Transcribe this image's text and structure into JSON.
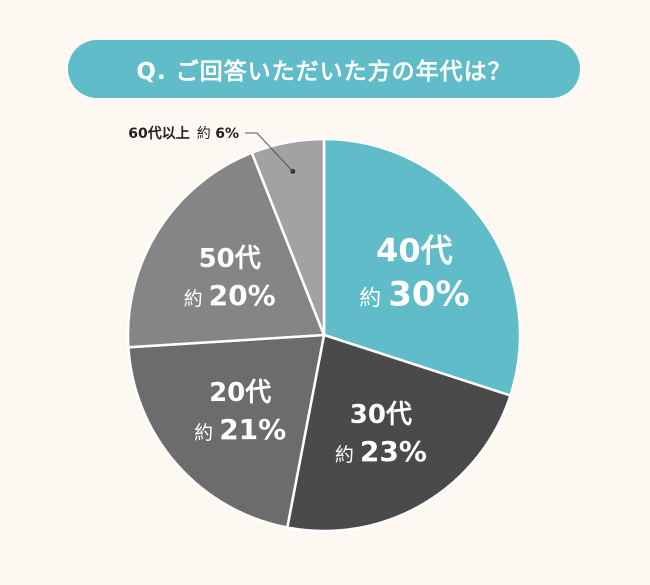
{
  "title": "Q. ご回答いただいた方の年代は？",
  "colors": {
    "background": "#fdf8f1",
    "title_pill": "#5fbcc8",
    "slice_borders": "#ffffff"
  },
  "chart_data": {
    "type": "pie",
    "title": "Q. ご回答いただいた方の年代は？",
    "slices": [
      {
        "category": "40代",
        "prefix": "約",
        "value": 30,
        "unit": "%",
        "color": "#5fbcc8",
        "label_color": "#ffffff"
      },
      {
        "category": "30代",
        "prefix": "約",
        "value": 23,
        "unit": "%",
        "color": "#4a4a4a",
        "label_color": "#ffffff"
      },
      {
        "category": "20代",
        "prefix": "約",
        "value": 21,
        "unit": "%",
        "color": "#6c6c6c",
        "label_color": "#ffffff"
      },
      {
        "category": "50代",
        "prefix": "約",
        "value": 20,
        "unit": "%",
        "color": "#858585",
        "label_color": "#ffffff"
      },
      {
        "category": "60代以上",
        "prefix": "約",
        "value": 6,
        "unit": "%",
        "color": "#a2a2a2",
        "label_color": "#222222",
        "outside_label": true
      }
    ],
    "start": "12 o'clock",
    "direction": "clockwise",
    "legend": "none"
  }
}
